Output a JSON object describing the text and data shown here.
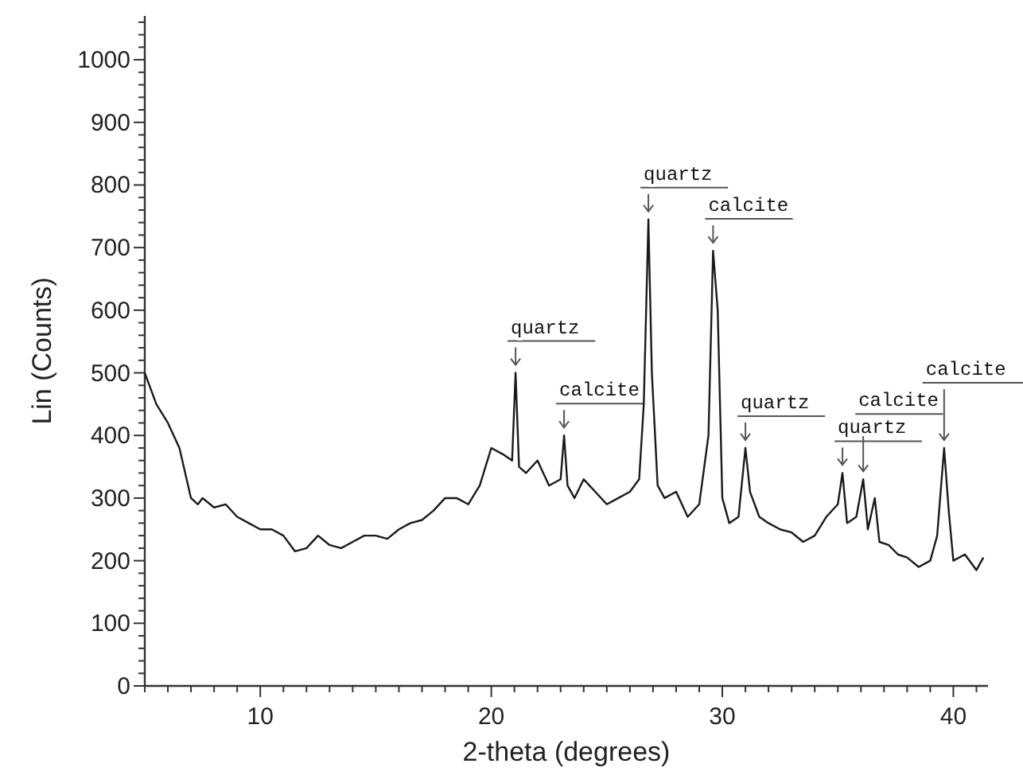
{
  "chart_data": {
    "type": "line",
    "xlabel": "2-theta (degrees)",
    "ylabel": "Lin (Counts)",
    "xlim": [
      5,
      41.5
    ],
    "ylim": [
      0,
      1070
    ],
    "xticks": [
      {
        "value": 5,
        "label": null
      },
      {
        "value": 6,
        "label": null
      },
      {
        "value": 7,
        "label": null
      },
      {
        "value": 8,
        "label": null
      },
      {
        "value": 9,
        "label": null
      },
      10,
      {
        "value": 11,
        "label": null
      },
      {
        "value": 12,
        "label": null
      },
      {
        "value": 13,
        "label": null
      },
      {
        "value": 14,
        "label": null
      },
      {
        "value": 15,
        "label": null
      },
      {
        "value": 16,
        "label": null
      },
      {
        "value": 17,
        "label": null
      },
      {
        "value": 18,
        "label": null
      },
      {
        "value": 19,
        "label": null
      },
      20,
      {
        "value": 21,
        "label": null
      },
      {
        "value": 22,
        "label": null
      },
      {
        "value": 23,
        "label": null
      },
      {
        "value": 24,
        "label": null
      },
      {
        "value": 25,
        "label": null
      },
      {
        "value": 26,
        "label": null
      },
      {
        "value": 27,
        "label": null
      },
      {
        "value": 28,
        "label": null
      },
      {
        "value": 29,
        "label": null
      },
      30,
      {
        "value": 31,
        "label": null
      },
      {
        "value": 32,
        "label": null
      },
      {
        "value": 33,
        "label": null
      },
      {
        "value": 34,
        "label": null
      },
      {
        "value": 35,
        "label": null
      },
      {
        "value": 36,
        "label": null
      },
      {
        "value": 37,
        "label": null
      },
      {
        "value": 38,
        "label": null
      },
      {
        "value": 39,
        "label": null
      },
      40,
      {
        "value": 41,
        "label": null
      }
    ],
    "yticks": [
      0,
      {
        "value": 20,
        "label": null
      },
      {
        "value": 40,
        "label": null
      },
      {
        "value": 60,
        "label": null
      },
      {
        "value": 80,
        "label": null
      },
      100,
      {
        "value": 120,
        "label": null
      },
      {
        "value": 140,
        "label": null
      },
      {
        "value": 160,
        "label": null
      },
      {
        "value": 180,
        "label": null
      },
      200,
      {
        "value": 220,
        "label": null
      },
      {
        "value": 240,
        "label": null
      },
      {
        "value": 260,
        "label": null
      },
      {
        "value": 280,
        "label": null
      },
      300,
      {
        "value": 320,
        "label": null
      },
      {
        "value": 340,
        "label": null
      },
      {
        "value": 360,
        "label": null
      },
      {
        "value": 380,
        "label": null
      },
      400,
      {
        "value": 420,
        "label": null
      },
      {
        "value": 440,
        "label": null
      },
      {
        "value": 460,
        "label": null
      },
      {
        "value": 480,
        "label": null
      },
      500,
      {
        "value": 520,
        "label": null
      },
      {
        "value": 540,
        "label": null
      },
      {
        "value": 560,
        "label": null
      },
      {
        "value": 580,
        "label": null
      },
      600,
      {
        "value": 620,
        "label": null
      },
      {
        "value": 640,
        "label": null
      },
      {
        "value": 660,
        "label": null
      },
      {
        "value": 680,
        "label": null
      },
      700,
      {
        "value": 720,
        "label": null
      },
      {
        "value": 740,
        "label": null
      },
      {
        "value": 760,
        "label": null
      },
      {
        "value": 780,
        "label": null
      },
      800,
      {
        "value": 820,
        "label": null
      },
      {
        "value": 840,
        "label": null
      },
      {
        "value": 860,
        "label": null
      },
      {
        "value": 880,
        "label": null
      },
      900,
      {
        "value": 920,
        "label": null
      },
      {
        "value": 940,
        "label": null
      },
      {
        "value": 960,
        "label": null
      },
      {
        "value": 980,
        "label": null
      },
      1000,
      {
        "value": 1020,
        "label": null
      },
      {
        "value": 1040,
        "label": null
      },
      {
        "value": 1060,
        "label": null
      }
    ],
    "grid": false,
    "marker": "none",
    "line_style": "solid",
    "series": [
      {
        "color": "#1a1a1a",
        "x": [
          5,
          5.5,
          6,
          6.5,
          7,
          7.3,
          7.5,
          8,
          8.5,
          9,
          9.5,
          10,
          10.5,
          11,
          11.5,
          12,
          12.5,
          13,
          13.5,
          14,
          14.5,
          15,
          15.5,
          16,
          16.5,
          17,
          17.5,
          18,
          18.5,
          19,
          19.5,
          20,
          20.5,
          20.9,
          21.05,
          21.2,
          21.5,
          22,
          22.5,
          23,
          23.15,
          23.3,
          23.6,
          24,
          24.5,
          25,
          25.5,
          26,
          26.4,
          26.6,
          26.8,
          26.95,
          27.2,
          27.5,
          28,
          28.5,
          29,
          29.4,
          29.6,
          29.8,
          30,
          30.3,
          30.7,
          31,
          31.2,
          31.6,
          32,
          32.5,
          33,
          33.5,
          34,
          34.5,
          35,
          35.2,
          35.4,
          35.8,
          36.1,
          36.3,
          36.6,
          36.8,
          37.2,
          37.6,
          38,
          38.5,
          39,
          39.3,
          39.6,
          39.8,
          40,
          40.5,
          41,
          41.3
        ],
        "values": [
          500,
          450,
          420,
          380,
          300,
          290,
          300,
          285,
          290,
          270,
          260,
          250,
          250,
          240,
          215,
          220,
          240,
          225,
          220,
          230,
          240,
          240,
          235,
          250,
          260,
          265,
          280,
          300,
          300,
          290,
          320,
          380,
          370,
          360,
          500,
          350,
          340,
          360,
          320,
          330,
          400,
          320,
          300,
          330,
          310,
          290,
          300,
          310,
          330,
          450,
          745,
          500,
          320,
          300,
          310,
          270,
          290,
          400,
          695,
          600,
          300,
          260,
          270,
          380,
          310,
          270,
          260,
          250,
          245,
          230,
          240,
          270,
          290,
          340,
          260,
          270,
          330,
          250,
          300,
          230,
          225,
          210,
          205,
          190,
          200,
          240,
          380,
          280,
          200,
          210,
          185,
          205
        ]
      }
    ],
    "annotations": [
      {
        "text": "quartz",
        "x": 21.05,
        "y": 500
      },
      {
        "text": "calcite",
        "x": 23.15,
        "y": 400
      },
      {
        "text": "quartz",
        "x": 26.8,
        "y": 745
      },
      {
        "text": "calcite",
        "x": 29.6,
        "y": 695
      },
      {
        "text": "quartz",
        "x": 31,
        "y": 380
      },
      {
        "text": "quartz",
        "x": 35.2,
        "y": 340
      },
      {
        "text": "calcite",
        "x": 36.1,
        "y": 330
      },
      {
        "text": "calcite",
        "x": 39.6,
        "y": 380
      }
    ]
  }
}
